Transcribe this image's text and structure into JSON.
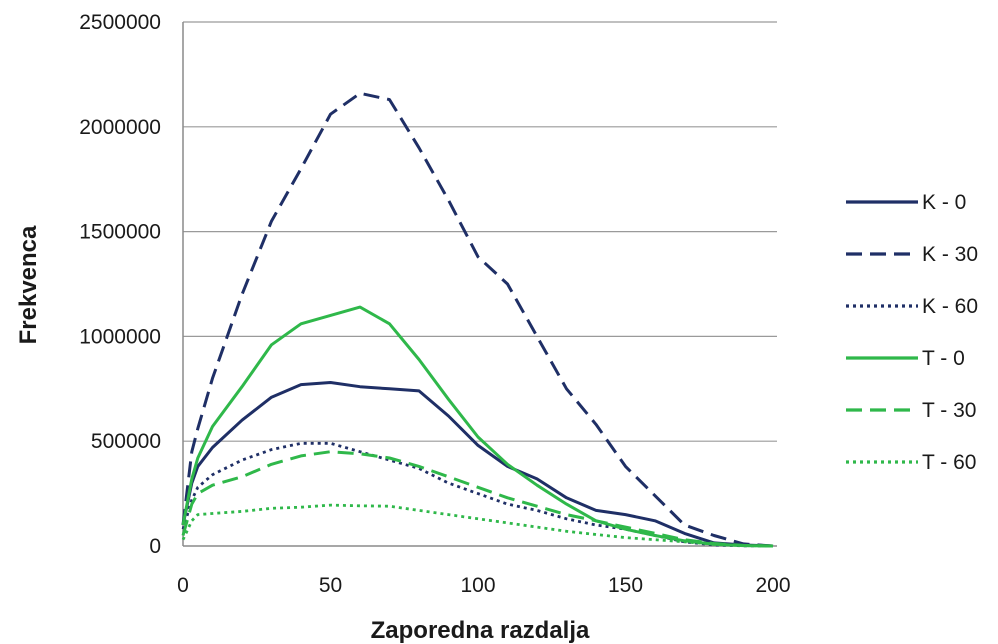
{
  "chart_data": {
    "type": "line",
    "title": "",
    "xlabel": "Zaporedna razdalja",
    "ylabel": "Frekvenca",
    "xlim": [
      0,
      200
    ],
    "ylim": [
      0,
      2500000
    ],
    "x_ticks": [
      0,
      50,
      100,
      150,
      200
    ],
    "x_tick_labels": [
      "0",
      "50",
      "100",
      "150",
      "200"
    ],
    "y_ticks": [
      0,
      500000,
      1000000,
      1500000,
      2000000,
      2500000
    ],
    "y_tick_labels": [
      "0",
      "500000",
      "1000000",
      "1500000",
      "2000000",
      "2500000"
    ],
    "grid": "horizontal",
    "legend_position": "right",
    "x": [
      0,
      3,
      5,
      10,
      20,
      30,
      40,
      50,
      60,
      70,
      80,
      90,
      100,
      110,
      120,
      130,
      140,
      150,
      160,
      170,
      180,
      190,
      200
    ],
    "series": [
      {
        "name": "K - 0",
        "color": "#1f2f66",
        "style": "solid",
        "values": [
          100000,
          300000,
          380000,
          470000,
          600000,
          710000,
          770000,
          780000,
          760000,
          750000,
          740000,
          620000,
          480000,
          380000,
          320000,
          230000,
          170000,
          150000,
          120000,
          60000,
          15000,
          5000,
          0
        ]
      },
      {
        "name": "K - 30",
        "color": "#1f2f66",
        "style": "dashed",
        "values": [
          100000,
          450000,
          560000,
          800000,
          1200000,
          1550000,
          1800000,
          2060000,
          2160000,
          2130000,
          1900000,
          1650000,
          1380000,
          1250000,
          1000000,
          750000,
          580000,
          380000,
          240000,
          100000,
          50000,
          10000,
          0
        ]
      },
      {
        "name": "K - 60",
        "color": "#1f2f66",
        "style": "dotted",
        "values": [
          80000,
          220000,
          280000,
          340000,
          410000,
          460000,
          490000,
          490000,
          450000,
          410000,
          370000,
          300000,
          250000,
          200000,
          170000,
          130000,
          100000,
          80000,
          50000,
          20000,
          5000,
          1000,
          0
        ]
      },
      {
        "name": "T - 0",
        "color": "#2fb84a",
        "style": "solid",
        "values": [
          100000,
          320000,
          420000,
          570000,
          760000,
          960000,
          1060000,
          1100000,
          1140000,
          1060000,
          890000,
          700000,
          520000,
          390000,
          290000,
          200000,
          120000,
          80000,
          50000,
          25000,
          8000,
          2000,
          0
        ]
      },
      {
        "name": "T - 30",
        "color": "#2fb84a",
        "style": "dashed",
        "values": [
          50000,
          200000,
          250000,
          290000,
          330000,
          390000,
          430000,
          450000,
          440000,
          420000,
          380000,
          330000,
          280000,
          230000,
          190000,
          150000,
          120000,
          90000,
          60000,
          30000,
          12000,
          3000,
          0
        ]
      },
      {
        "name": "T - 60",
        "color": "#2fb84a",
        "style": "dotted",
        "values": [
          30000,
          120000,
          150000,
          155000,
          165000,
          180000,
          185000,
          195000,
          192000,
          190000,
          170000,
          150000,
          130000,
          110000,
          90000,
          70000,
          55000,
          40000,
          30000,
          20000,
          8000,
          2000,
          0
        ]
      }
    ]
  }
}
